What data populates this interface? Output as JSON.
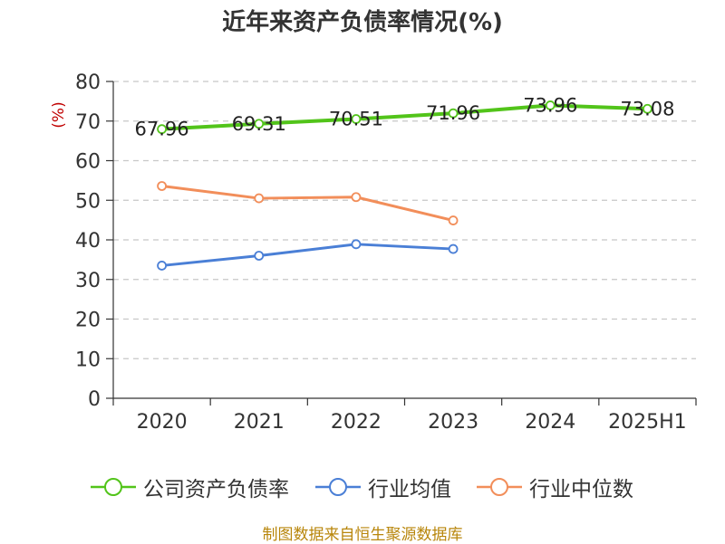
{
  "chart_data": {
    "type": "line",
    "title": "近年来资产负债率情况(%)",
    "ylabel": "(%)",
    "xlabel": "",
    "ylim": [
      0,
      80
    ],
    "yticks": [
      0,
      10,
      20,
      30,
      40,
      50,
      60,
      70,
      80
    ],
    "categories": [
      "2020",
      "2021",
      "2022",
      "2023",
      "2024",
      "2025H1"
    ],
    "grid": true,
    "legend_position": "bottom",
    "series": [
      {
        "name": "公司资产负债率",
        "color": "#52c41a",
        "values": [
          67.96,
          69.31,
          70.51,
          71.96,
          73.96,
          73.08
        ],
        "labels": true
      },
      {
        "name": "行业均值",
        "color": "#4a7fd6",
        "values": [
          33.5,
          36.0,
          38.9,
          37.7,
          null,
          null
        ],
        "labels": false
      },
      {
        "name": "行业中位数",
        "color": "#f28e5a",
        "values": [
          53.6,
          50.5,
          50.8,
          44.9,
          null,
          null
        ],
        "labels": false
      }
    ]
  },
  "footer": "制图数据来自恒生聚源数据库"
}
